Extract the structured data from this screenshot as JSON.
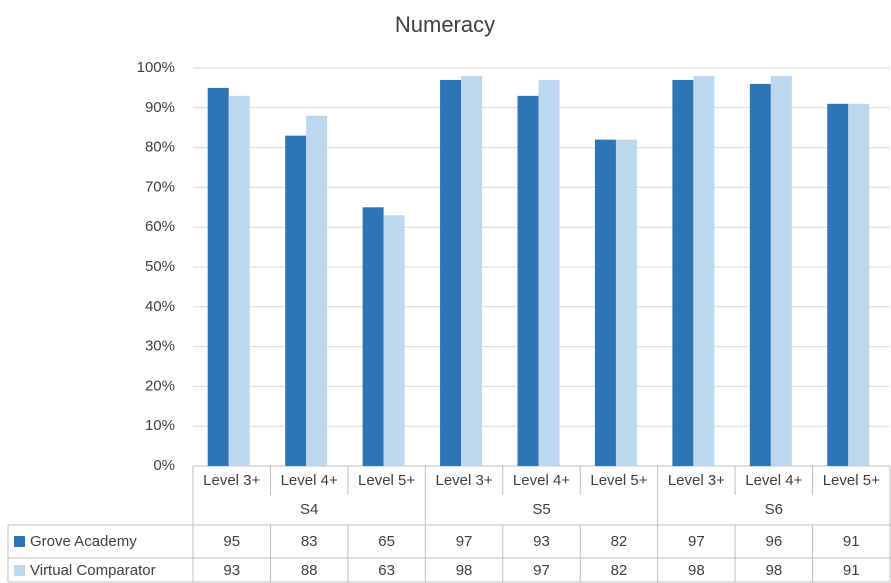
{
  "chart_data": {
    "type": "bar",
    "title": "Numeracy",
    "categories": [
      "Level 3+",
      "Level 4+",
      "Level 5+",
      "Level 3+",
      "Level 4+",
      "Level 5+",
      "Level 3+",
      "Level 4+",
      "Level 5+"
    ],
    "groups": [
      "S4",
      "S5",
      "S6"
    ],
    "series": [
      {
        "name": "Grove Academy",
        "color": "#2e75b6",
        "values": [
          95,
          83,
          65,
          97,
          93,
          82,
          97,
          96,
          91
        ]
      },
      {
        "name": "Virtual Comparator",
        "color": "#bdd7ee",
        "values": [
          93,
          88,
          63,
          98,
          97,
          82,
          98,
          98,
          91
        ]
      }
    ],
    "ylim": [
      0,
      100
    ],
    "yticks": [
      {
        "value": 0,
        "label": "0%"
      },
      {
        "value": 10,
        "label": "10%"
      },
      {
        "value": 20,
        "label": "20%"
      },
      {
        "value": 30,
        "label": "30%"
      },
      {
        "value": 40,
        "label": "40%"
      },
      {
        "value": 50,
        "label": "50%"
      },
      {
        "value": 60,
        "label": "60%"
      },
      {
        "value": 70,
        "label": "70%"
      },
      {
        "value": 80,
        "label": "80%"
      },
      {
        "value": 90,
        "label": "90%"
      },
      {
        "value": 100,
        "label": "100%"
      }
    ],
    "grid": true,
    "data_table": true
  }
}
